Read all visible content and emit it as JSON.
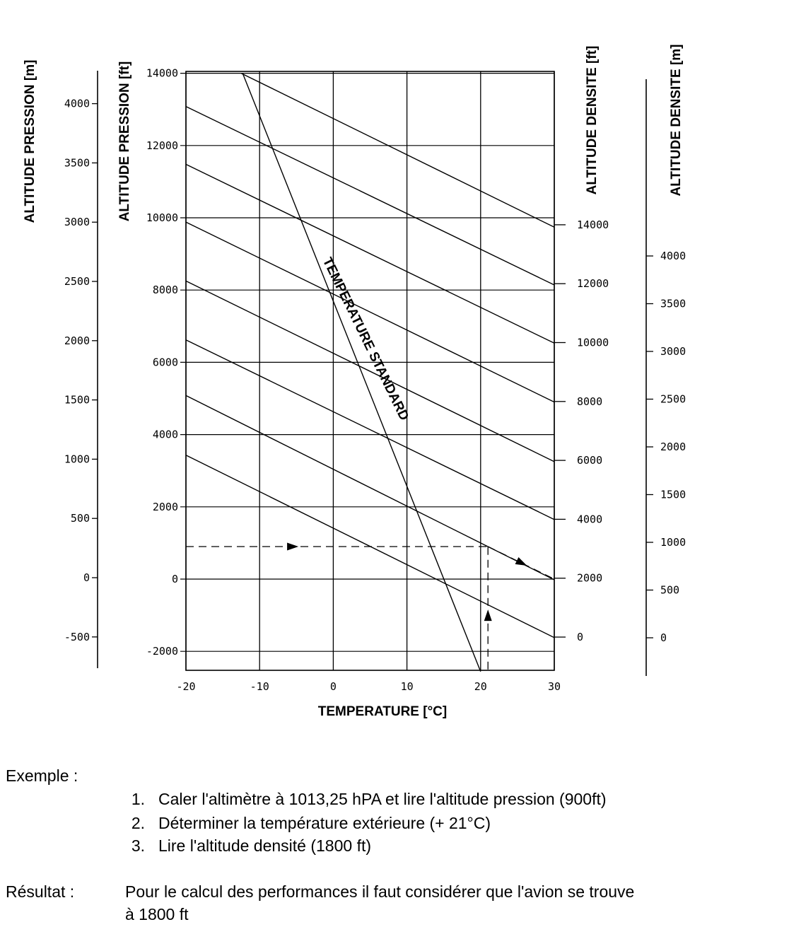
{
  "chart_data": {
    "type": "line",
    "title": "",
    "xlabel": "TEMPERATURE [°C]",
    "ylabel": "ALTITUDE PRESSION [ft]",
    "ylabel_secondary": "ALTITUDE PRESSION [m]",
    "ylabel_right": "ALTITUDE DENSITE [ft]",
    "ylabel_right_secondary": "ALTITUDE DENSITE [m]",
    "xlim": [
      -20,
      30
    ],
    "ylim": [
      -2500,
      14000
    ],
    "grid": true,
    "x_ticks": [
      -20,
      -10,
      0,
      10,
      20,
      30
    ],
    "x_tick_labels": [
      "-20",
      "-10",
      "0",
      "10",
      "20",
      "30"
    ],
    "y_ticks": [
      -2000,
      0,
      2000,
      4000,
      6000,
      8000,
      10000,
      12000,
      14000
    ],
    "y_tick_labels": [
      "-2000",
      "0",
      "2000",
      "4000",
      "6000",
      "8000",
      "10000",
      "12000",
      "14000"
    ],
    "m_ticks": [
      -500,
      0,
      500,
      1000,
      1500,
      2000,
      2500,
      3000,
      3500,
      4000
    ],
    "m_tick_labels": [
      "-500",
      "0",
      "500",
      "1000",
      "1500",
      "2000",
      "2500",
      "3000",
      "3500",
      "4000"
    ],
    "density_ticks": [
      0,
      2000,
      4000,
      6000,
      8000,
      10000,
      12000,
      14000
    ],
    "density_tick_labels": [
      "0",
      "2000",
      "4000",
      "6000",
      "8000",
      "10000",
      "12000",
      "14000"
    ],
    "density_m_ticks": [
      0,
      500,
      1000,
      1500,
      2000,
      2500,
      3000,
      3500,
      4000
    ],
    "density_m_tick_labels": [
      "0",
      "500",
      "1000",
      "1500",
      "2000",
      "2500",
      "3000",
      "3500",
      "4000"
    ],
    "series": [
      {
        "name": "Altitude densité 0 ft",
        "x": [
          -20,
          30
        ],
        "y": [
          3430,
          -1620
        ]
      },
      {
        "name": "Altitude densité 2000 ft",
        "x": [
          -20,
          30
        ],
        "y": [
          5080,
          -20
        ]
      },
      {
        "name": "Altitude densité 4000 ft",
        "x": [
          -20,
          30
        ],
        "y": [
          6620,
          1650
        ]
      },
      {
        "name": "Altitude densité 6000 ft",
        "x": [
          -20,
          30
        ],
        "y": [
          8250,
          3250
        ]
      },
      {
        "name": "Altitude densité 8000 ft",
        "x": [
          -20,
          30
        ],
        "y": [
          9880,
          4900
        ]
      },
      {
        "name": "Altitude densité 10000 ft",
        "x": [
          -20,
          30
        ],
        "y": [
          11480,
          6530
        ]
      },
      {
        "name": "Altitude densité 12000 ft",
        "x": [
          -20,
          30
        ],
        "y": [
          13080,
          8140
        ]
      },
      {
        "name": "Altitude densité 14000 ft",
        "x": [
          -12.5,
          30
        ],
        "y": [
          14000,
          9740
        ]
      },
      {
        "name": "Température standard",
        "x": [
          -12.3,
          20
        ],
        "y": [
          14000,
          -2560
        ]
      },
      {
        "name": "Exemple (pression)",
        "x": [
          -20,
          21
        ],
        "y": [
          900,
          900
        ]
      },
      {
        "name": "Exemple (température)",
        "x": [
          21,
          21
        ],
        "y": [
          -2500,
          900
        ]
      },
      {
        "name": "Exemple (densité)",
        "x": [
          21,
          30
        ],
        "y": [
          900,
          0
        ]
      }
    ],
    "annotations": [
      "TEMPERATURE STANDARD"
    ]
  },
  "notes": {
    "example_label": "Exemple :",
    "steps": [
      {
        "number": "1.",
        "text": "Caler l'altimètre à 1013,25 hPA et lire l'altitude pression (900ft)"
      },
      {
        "number": "2.",
        "text": "Déterminer la température extérieure (+ 21°C)"
      },
      {
        "number": "3.",
        "text": "Lire l'altitude densité (1800 ft)"
      }
    ],
    "result_label": "Résultat :",
    "result_line1": "Pour le calcul des performances il faut considérer que l'avion se trouve",
    "result_line2": "à 1800 ft"
  }
}
